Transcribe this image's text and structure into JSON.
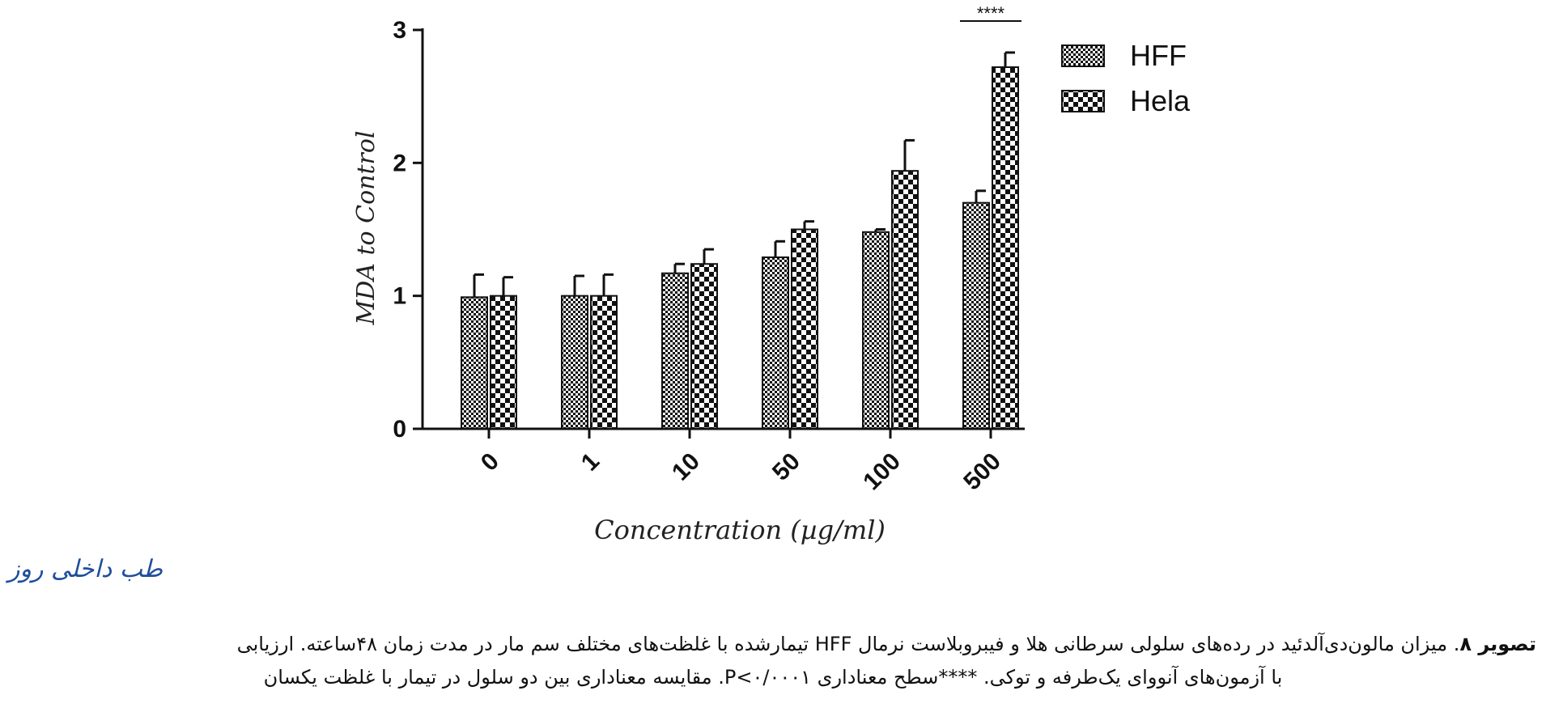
{
  "chart_data": {
    "type": "bar",
    "title": "",
    "xlabel": "Concentration (µg/ml)",
    "ylabel": "MDA to Control",
    "categories": [
      "0",
      "1",
      "10",
      "50",
      "100",
      "500"
    ],
    "ylim": [
      0,
      3
    ],
    "yticks": [
      "0",
      "1",
      "2",
      "3"
    ],
    "series": [
      {
        "name": "HFF",
        "values": [
          0.99,
          1.0,
          1.17,
          1.29,
          1.48,
          1.7
        ],
        "errors": [
          0.17,
          0.15,
          0.07,
          0.12,
          0.02,
          0.09
        ]
      },
      {
        "name": "Hela",
        "values": [
          1.0,
          1.0,
          1.24,
          1.5,
          1.94,
          2.72
        ],
        "errors": [
          0.14,
          0.16,
          0.11,
          0.06,
          0.23,
          0.11
        ]
      }
    ],
    "significance": {
      "label": "****",
      "category": "500"
    },
    "legend_position": "top-right",
    "colors": {
      "axis": "#111111",
      "bar_fill": "#ffffff",
      "pattern": "#111111",
      "label": "#222222"
    }
  },
  "logo_text": "طب داخلی روز",
  "caption": {
    "label": "تصویر ۸",
    "line1": ". میزان مالون‌دی‌آلدئید در رده‌های سلولی سرطانی هلا و فیبروبلاست نرمال HFF تیمارشده با غلظت‌های مختلف سم مار در مدت زمان ۴۸ساعته. ارزیابی",
    "line2": "با آزمون‌های آنووای یک‌طرفه و توکی. ****سطح معناداری P<۰/۰۰۰۱. مقایسه معناداری بین دو سلول در تیمار با غلظت یکسان"
  }
}
